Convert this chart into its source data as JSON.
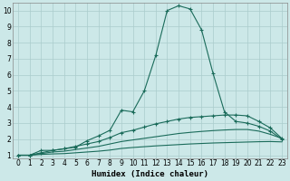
{
  "title": "",
  "xlabel": "Humidex (Indice chaleur)",
  "bg_color": "#cce8e8",
  "grid_color": "#aacccc",
  "line_color": "#1a6b5a",
  "xlim": [
    -0.5,
    23.5
  ],
  "ylim": [
    0.8,
    10.5
  ],
  "xticks": [
    0,
    1,
    2,
    3,
    4,
    5,
    6,
    7,
    8,
    9,
    10,
    11,
    12,
    13,
    14,
    15,
    16,
    17,
    18,
    19,
    20,
    21,
    22,
    23
  ],
  "yticks": [
    1,
    2,
    3,
    4,
    5,
    6,
    7,
    8,
    9,
    10
  ],
  "line1_x": [
    0,
    1,
    2,
    3,
    4,
    5,
    6,
    7,
    8,
    9,
    10,
    11,
    12,
    13,
    14,
    15,
    16,
    17,
    18,
    19,
    20,
    21,
    22,
    23
  ],
  "line1_y": [
    1.0,
    1.0,
    1.3,
    1.3,
    1.4,
    1.5,
    1.9,
    2.2,
    2.55,
    3.8,
    3.7,
    5.0,
    7.2,
    10.0,
    10.3,
    10.1,
    8.8,
    6.1,
    3.7,
    3.1,
    3.0,
    2.8,
    2.5,
    2.0
  ],
  "line2_x": [
    0,
    1,
    2,
    3,
    4,
    5,
    6,
    7,
    8,
    9,
    10,
    11,
    12,
    13,
    14,
    15,
    16,
    17,
    18,
    19,
    20,
    21,
    22,
    23
  ],
  "line2_y": [
    1.0,
    1.0,
    1.15,
    1.3,
    1.4,
    1.55,
    1.7,
    1.85,
    2.1,
    2.4,
    2.55,
    2.75,
    2.95,
    3.1,
    3.25,
    3.35,
    3.4,
    3.45,
    3.5,
    3.5,
    3.45,
    3.1,
    2.7,
    2.05
  ],
  "line3_x": [
    0,
    1,
    2,
    3,
    4,
    5,
    6,
    7,
    8,
    9,
    10,
    11,
    12,
    13,
    14,
    15,
    16,
    17,
    18,
    19,
    20,
    21,
    22,
    23
  ],
  "line3_y": [
    1.0,
    1.0,
    1.1,
    1.2,
    1.25,
    1.35,
    1.45,
    1.55,
    1.7,
    1.85,
    1.95,
    2.05,
    2.15,
    2.25,
    2.35,
    2.42,
    2.48,
    2.53,
    2.57,
    2.6,
    2.6,
    2.5,
    2.3,
    2.05
  ],
  "line4_x": [
    0,
    1,
    2,
    3,
    4,
    5,
    6,
    7,
    8,
    9,
    10,
    11,
    12,
    13,
    14,
    15,
    16,
    17,
    18,
    19,
    20,
    21,
    22,
    23
  ],
  "line4_y": [
    1.0,
    1.0,
    1.05,
    1.08,
    1.1,
    1.15,
    1.2,
    1.25,
    1.32,
    1.42,
    1.48,
    1.53,
    1.58,
    1.62,
    1.66,
    1.7,
    1.73,
    1.76,
    1.78,
    1.8,
    1.82,
    1.84,
    1.85,
    1.83
  ]
}
